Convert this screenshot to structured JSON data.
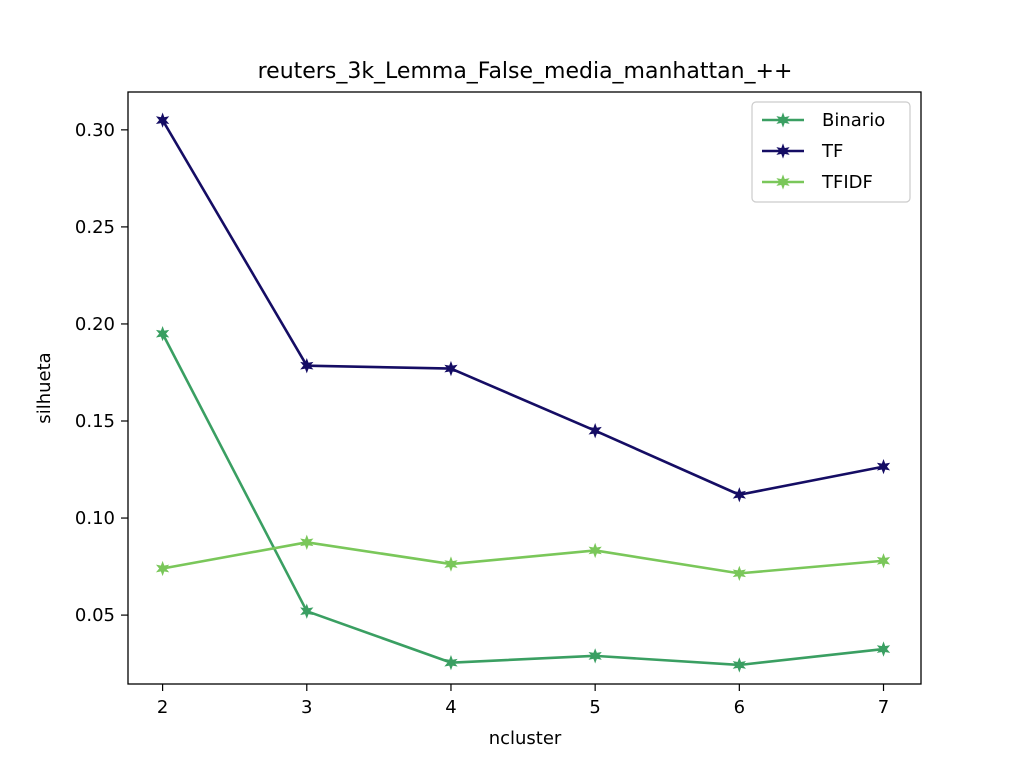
{
  "chart_data": {
    "type": "line",
    "title": "reuters_3k_Lemma_False_media_manhattan_++",
    "xlabel": "ncluster",
    "ylabel": "silhueta",
    "x": [
      2,
      3,
      4,
      5,
      6,
      7
    ],
    "xlim": [
      1.76,
      7.26
    ],
    "ylim": [
      0.0145,
      0.3195
    ],
    "xticks": [
      2,
      3,
      4,
      5,
      6,
      7
    ],
    "yticks": [
      0.05,
      0.1,
      0.15,
      0.2,
      0.25,
      0.3
    ],
    "ytick_labels": [
      "0.05",
      "0.10",
      "0.15",
      "0.20",
      "0.25",
      "0.30"
    ],
    "grid": false,
    "legend_position": "top-right",
    "marker": "star",
    "series": [
      {
        "name": "Binario",
        "color": "#3a9f62",
        "values": [
          0.195,
          0.052,
          0.0255,
          0.029,
          0.0243,
          0.0325
        ]
      },
      {
        "name": "TF",
        "color": "#150d64",
        "values": [
          0.305,
          0.1785,
          0.177,
          0.145,
          0.112,
          0.1265
        ]
      },
      {
        "name": "TFIDF",
        "color": "#7ac75a",
        "values": [
          0.074,
          0.0875,
          0.0763,
          0.0833,
          0.0715,
          0.078
        ]
      }
    ]
  }
}
